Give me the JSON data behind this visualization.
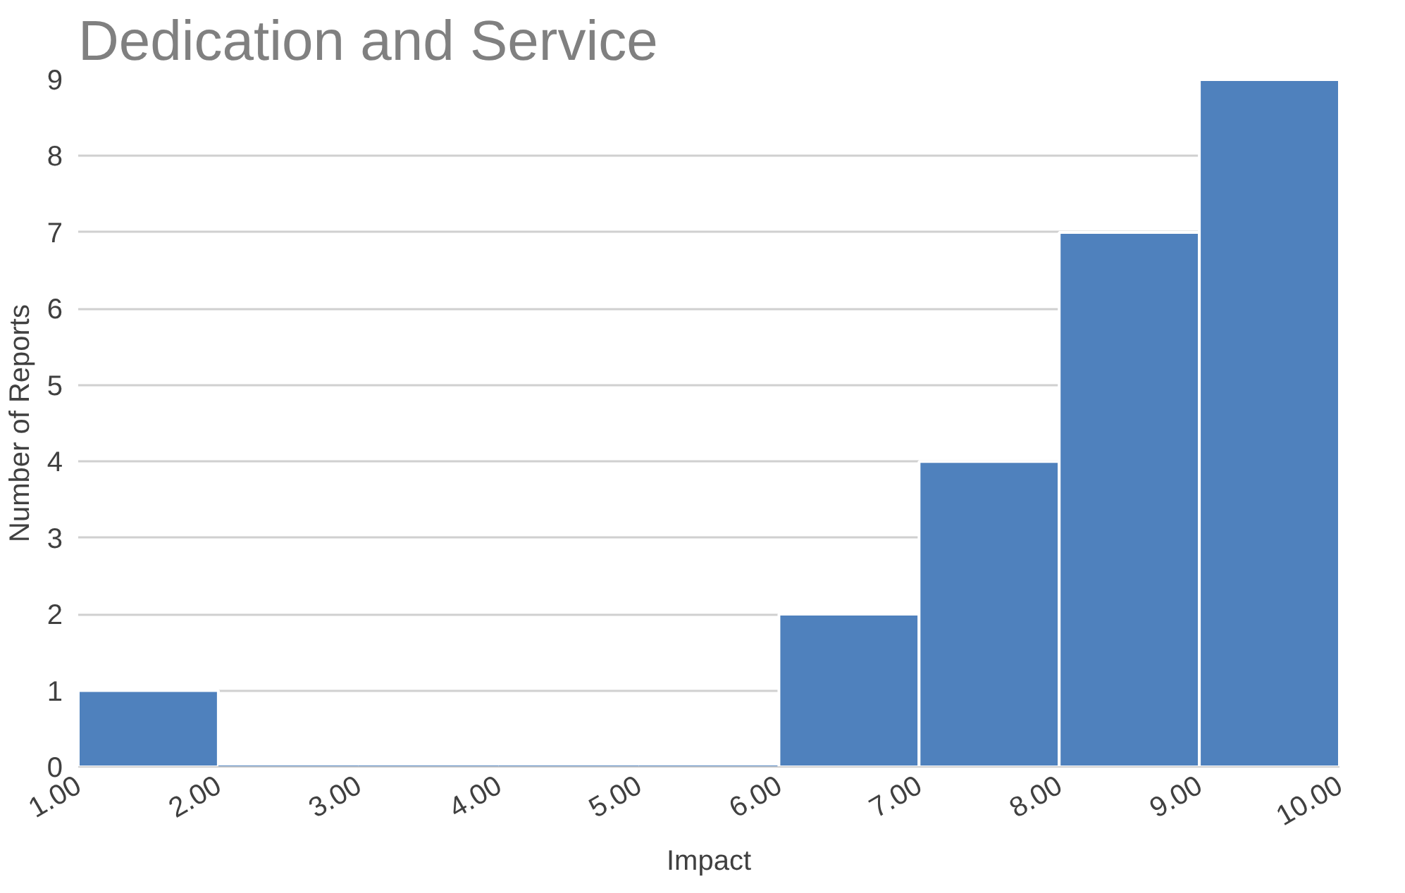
{
  "chart_data": {
    "type": "histogram",
    "title": "Dedication and Service",
    "xlabel": "Impact",
    "ylabel": "Number of Reports",
    "bins": [
      1,
      2,
      3,
      4,
      5,
      6,
      7,
      8,
      9,
      10
    ],
    "values": [
      1,
      0,
      0,
      0,
      0,
      2,
      4,
      7,
      9
    ],
    "color": "#4f81bd",
    "xlim": [
      1,
      10
    ],
    "xticks": [
      {
        "value": 1,
        "label": "1.00"
      },
      {
        "value": 2,
        "label": "2.00"
      },
      {
        "value": 3,
        "label": "3.00"
      },
      {
        "value": 4,
        "label": "4.00"
      },
      {
        "value": 5,
        "label": "5.00"
      },
      {
        "value": 6,
        "label": "6.00"
      },
      {
        "value": 7,
        "label": "7.00"
      },
      {
        "value": 8,
        "label": "8.00"
      },
      {
        "value": 9,
        "label": "9.00"
      },
      {
        "value": 10,
        "label": "10.00"
      }
    ],
    "ylim": [
      0,
      9
    ],
    "yticks": [
      0,
      1,
      2,
      3,
      4,
      5,
      6,
      7,
      8,
      9
    ],
    "grid": "y"
  }
}
